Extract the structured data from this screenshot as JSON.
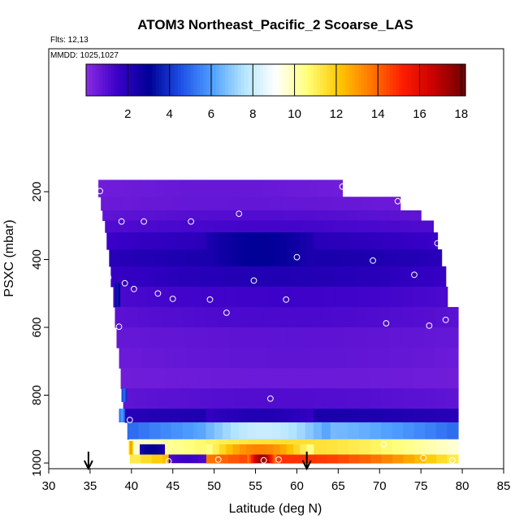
{
  "header": {
    "title": "ATOM3 Northeast_Pacific_2 Scoarse_LAS",
    "flights": "Flts: 12,13",
    "dates": "MMDD: 1025,1027"
  },
  "colors": {
    "scale": [
      "#8a2be2",
      "#3a00c8",
      "#000096",
      "#1e50e6",
      "#4fa0ff",
      "#b4e6ff",
      "#ffffff",
      "#ffff7a",
      "#ffc800",
      "#ff7800",
      "#ff1e00",
      "#c80000",
      "#6e0000"
    ],
    "axis": "#000000",
    "point_marker": "#ffffff",
    "arrow": "#000000"
  },
  "colorbar": {
    "min": 0,
    "max": 18.2,
    "ticks": [
      2,
      4,
      6,
      8,
      10,
      12,
      14,
      16,
      18
    ],
    "tick_labels": [
      "2",
      "4",
      "6",
      "8",
      "10",
      "12",
      "14",
      "16",
      "18"
    ]
  },
  "chart_data": {
    "type": "heatmap",
    "title": "ATOM3 Northeast_Pacific_2 Scoarse_LAS",
    "xlabel": "Latitude (deg N)",
    "ylabel": "PSXC (mbar)",
    "xlim": [
      30,
      85
    ],
    "ylim": [
      1000,
      0
    ],
    "x_ticks": [
      30,
      35,
      40,
      45,
      50,
      55,
      60,
      65,
      70,
      75,
      80,
      85
    ],
    "x_tick_labels": [
      "30",
      "35",
      "40",
      "45",
      "50",
      "55",
      "60",
      "65",
      "70",
      "75",
      "80",
      "85"
    ],
    "y_ticks": [
      200,
      400,
      600,
      800,
      1000
    ],
    "y_tick_labels": [
      "200",
      "400",
      "600",
      "800",
      "1000"
    ],
    "grid": false,
    "layers": [
      {
        "p": [
          165,
          215
        ],
        "x": [
          36,
          65.5
        ],
        "v": 0.5
      },
      {
        "p": [
          215,
          255
        ],
        "x": [
          36.3,
          72.5
        ],
        "v": 0.6
      },
      {
        "p": [
          255,
          285
        ],
        "x": [
          36.5,
          75
        ],
        "v": 0.8
      },
      {
        "p": [
          285,
          320
        ],
        "x": [
          36.8,
          76.5
        ],
        "v": 1.1
      },
      {
        "p": [
          320,
          370
        ],
        "x": [
          37,
          77
        ],
        "v": 1.5
      },
      {
        "p": [
          370,
          420
        ],
        "x": [
          37.3,
          77.5
        ],
        "v": 2.0
      },
      {
        "p": [
          420,
          480
        ],
        "x": [
          37.5,
          78
        ],
        "v": 1.6
      },
      {
        "p": [
          480,
          540
        ],
        "x": [
          37.8,
          78.2
        ],
        "v": 1.2
      },
      {
        "p": [
          540,
          600
        ],
        "x": [
          38,
          79.5
        ],
        "v": 0.9
      },
      {
        "p": [
          600,
          660
        ],
        "x": [
          38.2,
          79.5
        ],
        "v": 0.7
      },
      {
        "p": [
          660,
          720
        ],
        "x": [
          38.5,
          79.5
        ],
        "v": 0.6
      },
      {
        "p": [
          720,
          780
        ],
        "x": [
          38.7,
          79.5
        ],
        "v": 0.5
      },
      {
        "p": [
          780,
          840
        ],
        "x": [
          39,
          79.5
        ],
        "v": 0.8
      },
      {
        "p": [
          840,
          880
        ],
        "x": [
          39.2,
          79.5
        ],
        "v": 2.0
      },
      {
        "p": [
          880,
          930
        ],
        "x": [
          39.5,
          79.5
        ],
        "v": 5.0
      },
      {
        "p": [
          930,
          975
        ],
        "x": [
          39.7,
          79.5
        ],
        "v": 9.5
      },
      {
        "p": [
          975,
          1000
        ],
        "x": [
          39.8,
          79.5
        ],
        "v": 11.0
      }
    ],
    "points": [
      {
        "lat": 36.2,
        "p": 198
      },
      {
        "lat": 65.5,
        "p": 185
      },
      {
        "lat": 72.2,
        "p": 228
      },
      {
        "lat": 53.0,
        "p": 265
      },
      {
        "lat": 38.8,
        "p": 288
      },
      {
        "lat": 41.5,
        "p": 288
      },
      {
        "lat": 47.2,
        "p": 288
      },
      {
        "lat": 77.0,
        "p": 352
      },
      {
        "lat": 60.0,
        "p": 393
      },
      {
        "lat": 69.2,
        "p": 403
      },
      {
        "lat": 54.8,
        "p": 462
      },
      {
        "lat": 37.2,
        "p": 453
      },
      {
        "lat": 39.2,
        "p": 470
      },
      {
        "lat": 40.3,
        "p": 487
      },
      {
        "lat": 43.2,
        "p": 500
      },
      {
        "lat": 45.0,
        "p": 516
      },
      {
        "lat": 49.5,
        "p": 518
      },
      {
        "lat": 58.7,
        "p": 518
      },
      {
        "lat": 74.2,
        "p": 445
      },
      {
        "lat": 51.5,
        "p": 557
      },
      {
        "lat": 70.8,
        "p": 588
      },
      {
        "lat": 38.5,
        "p": 598
      },
      {
        "lat": 78.0,
        "p": 578
      },
      {
        "lat": 76.0,
        "p": 595
      },
      {
        "lat": 56.8,
        "p": 810
      },
      {
        "lat": 39.8,
        "p": 873
      },
      {
        "lat": 70.5,
        "p": 945
      },
      {
        "lat": 44.5,
        "p": 995
      },
      {
        "lat": 50.5,
        "p": 990
      },
      {
        "lat": 56.0,
        "p": 992
      },
      {
        "lat": 57.8,
        "p": 990
      },
      {
        "lat": 75.3,
        "p": 985
      },
      {
        "lat": 78.8,
        "p": 992
      }
    ],
    "arrows_lat": [
      34.8,
      61.2
    ],
    "hot_spots": [
      {
        "x": [
          54.0,
          57.5
        ],
        "p": [
          970,
          1000
        ],
        "v": 17.5
      },
      {
        "x": [
          49.0,
          62.0
        ],
        "p": [
          945,
          975
        ],
        "v": 13.5
      },
      {
        "x": [
          41.0,
          44.0
        ],
        "p": [
          945,
          975
        ],
        "v": 3.0
      },
      {
        "x": [
          44.5,
          49.0
        ],
        "p": [
          975,
          1000
        ],
        "v": 1.5
      },
      {
        "x": [
          39.6,
          40.3
        ],
        "p": [
          935,
          975
        ],
        "v": 13.0
      },
      {
        "x": [
          48.0,
          64.0
        ],
        "p": [
          880,
          930
        ],
        "v": 8.0
      },
      {
        "x": [
          49.0,
          62.0
        ],
        "p": [
          840,
          880
        ],
        "v": 2.2
      },
      {
        "x": [
          49.0,
          62.0
        ],
        "p": [
          320,
          420
        ],
        "v": 3.0
      },
      {
        "x": [
          38.0,
          38.6
        ],
        "p": [
          470,
          540
        ],
        "v": 3.5
      },
      {
        "x": [
          38.5,
          39.2
        ],
        "p": [
          840,
          880
        ],
        "v": 6.0
      },
      {
        "x": [
          38.8,
          39.4
        ],
        "p": [
          780,
          820
        ],
        "v": 5.0
      }
    ]
  }
}
